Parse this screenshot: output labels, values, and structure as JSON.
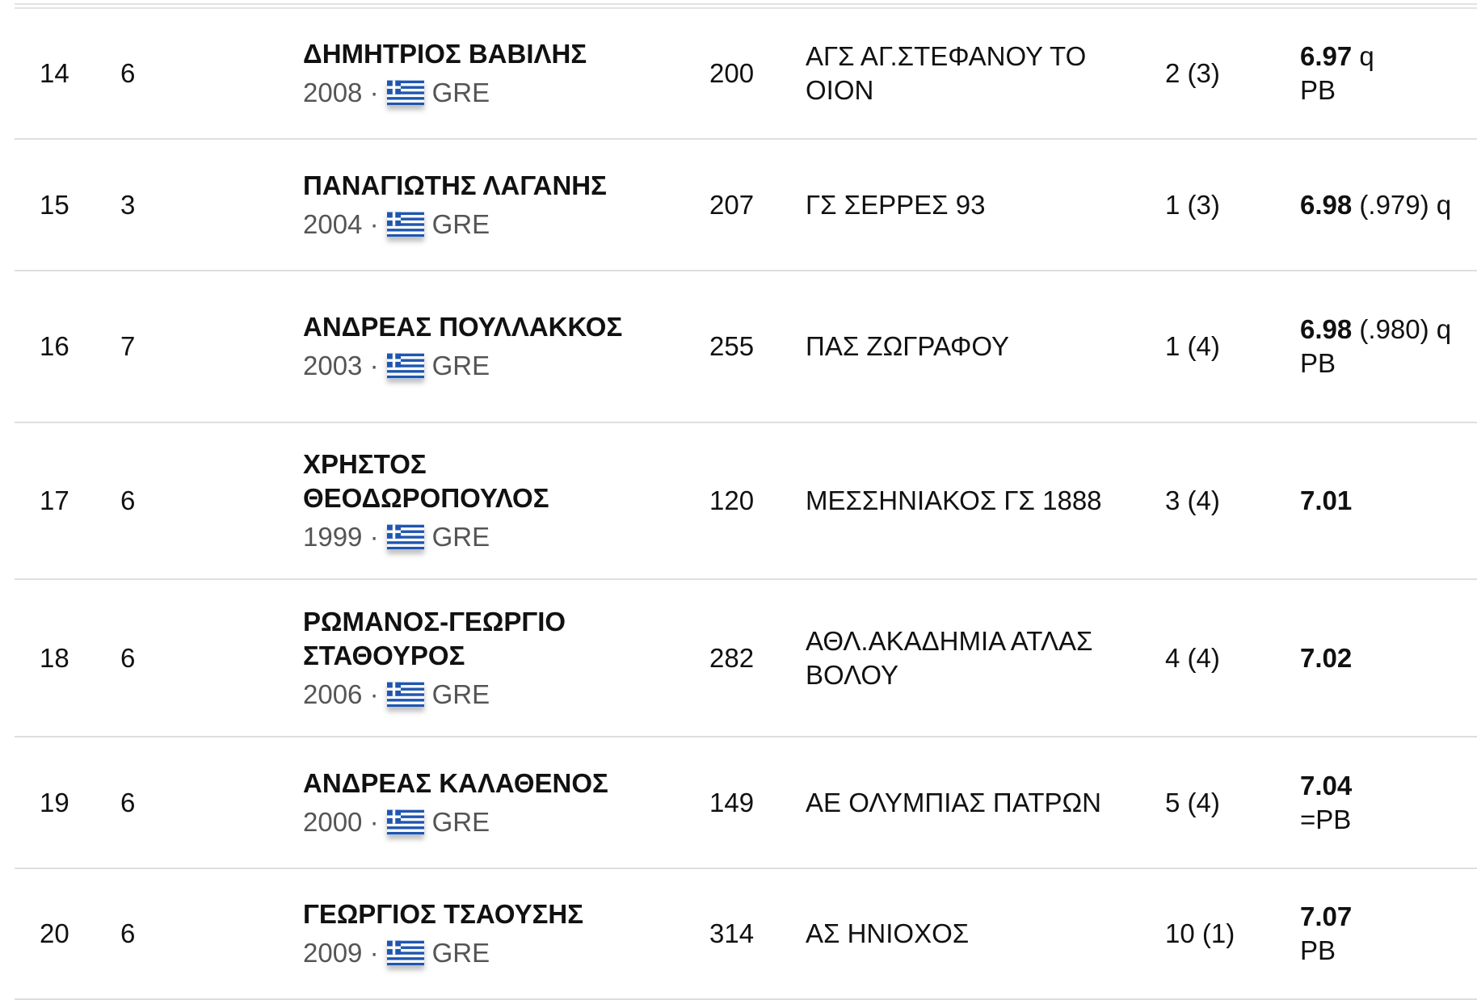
{
  "colors": {
    "flag_blue": "#1f56b0",
    "separator": "#dedede"
  },
  "rows": [
    {
      "rank": "14",
      "heat": "6",
      "name": "ΔΗΜΗΤΡΙΟΣ ΒΑΒΙΛΗΣ",
      "year": "2008",
      "country": "GRE",
      "flag": "greece-flag-icon",
      "bib": "200",
      "club": "ΑΓΣ ΑΓ.ΣΤΕΦΑΝΟΥ ΤΟ ΟΙΟΝ",
      "place": "2  (3)",
      "time": "6.97",
      "note": "q",
      "extra": "PB"
    },
    {
      "rank": "15",
      "heat": "3",
      "name": "ΠΑΝΑΓΙΩΤΗΣ ΛΑΓΑΝΗΣ",
      "year": "2004",
      "country": "GRE",
      "flag": "greece-flag-icon",
      "bib": "207",
      "club": "ΓΣ ΣΕΡΡΕΣ 93",
      "place": "1  (3)",
      "time": "6.98",
      "note": "(.979)  q",
      "extra": ""
    },
    {
      "rank": "16",
      "heat": "7",
      "name": "ΑΝΔΡΕΑΣ ΠΟΥΛΛΑΚΚΟΣ",
      "year": "2003",
      "country": "GRE",
      "flag": "greece-flag-icon",
      "bib": "255",
      "club": "ΠΑΣ ΖΩΓΡΑΦΟΥ",
      "place": "1  (4)",
      "time": "6.98",
      "note": "(.980)  q",
      "extra": "PB"
    },
    {
      "rank": "17",
      "heat": "6",
      "name": "ΧΡΗΣΤΟΣ ΘΕΟΔΩΡΟΠΟΥΛΟΣ",
      "year": "1999",
      "country": "GRE",
      "flag": "greece-flag-icon",
      "bib": "120",
      "club": "ΜΕΣΣΗΝΙΑΚΟΣ ΓΣ 1888",
      "place": "3  (4)",
      "time": "7.01",
      "note": "",
      "extra": ""
    },
    {
      "rank": "18",
      "heat": "6",
      "name": "ΡΩΜΑΝΟΣ-ΓΕΩΡΓΙΟ ΣΤΑΘΟΥΡΟΣ",
      "year": "2006",
      "country": "GRE",
      "flag": "greece-flag-icon",
      "bib": "282",
      "club": "ΑΘΛ.ΑΚΑΔΗΜΙΑ ΑΤΛΑΣ ΒΟΛΟΥ",
      "place": "4  (4)",
      "time": "7.02",
      "note": "",
      "extra": ""
    },
    {
      "rank": "19",
      "heat": "6",
      "name": "ΑΝΔΡΕΑΣ ΚΑΛΑΘΕΝΟΣ",
      "year": "2000",
      "country": "GRE",
      "flag": "greece-flag-icon",
      "bib": "149",
      "club": "ΑΕ ΟΛΥΜΠΙΑΣ ΠΑΤΡΩΝ",
      "place": "5  (4)",
      "time": "7.04",
      "note": "",
      "extra": "=PB"
    },
    {
      "rank": "20",
      "heat": "6",
      "name": "ΓΕΩΡΓΙΟΣ ΤΣΑΟΥΣΗΣ",
      "year": "2009",
      "country": "GRE",
      "flag": "greece-flag-icon",
      "bib": "314",
      "club": "ΑΣ ΗΝΙΟΧΟΣ",
      "place": "10  (1)",
      "time": "7.07",
      "note": "",
      "extra": "PB"
    }
  ]
}
